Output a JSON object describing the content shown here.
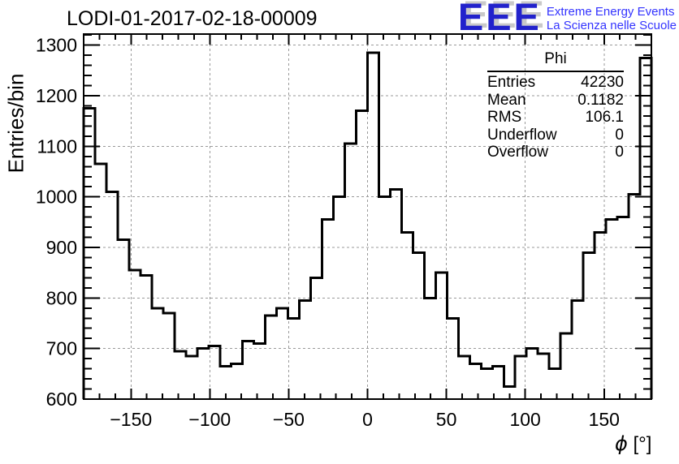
{
  "title": "LODI-01-2017-02-18-00009",
  "logo": {
    "acronym": "EEE",
    "line1": "Extreme Energy Events",
    "line2": "La Scienza nelle Scuole",
    "brand_color": "#2222cc",
    "text_color": "#3333ff",
    "shadow_color": "#c9c9c9"
  },
  "stats": {
    "title": "Phi",
    "rows": [
      {
        "label": "Entries",
        "value": "42230"
      },
      {
        "label": "Mean",
        "value": "0.1182"
      },
      {
        "label": "RMS",
        "value": "106.1"
      },
      {
        "label": "Underflow",
        "value": "0"
      },
      {
        "label": "Overflow",
        "value": "0"
      }
    ]
  },
  "chart_data": {
    "type": "bar",
    "subtype": "step-histogram",
    "title": "LODI-01-2017-02-18-00009",
    "xlabel": "ϕ [°]",
    "xlabel_symbol": "ϕ",
    "xlabel_units": " [°]",
    "ylabel": "Entries/bin",
    "x_range": [
      -180,
      180
    ],
    "y_range": [
      600,
      1322
    ],
    "x_ticks": [
      -150,
      -100,
      -50,
      0,
      50,
      100,
      150
    ],
    "y_ticks": [
      600,
      700,
      800,
      900,
      1000,
      1100,
      1200,
      1300
    ],
    "x_minor_step": 10,
    "y_minor_step": 20,
    "grid": true,
    "legend": "none",
    "line_color": "#000000",
    "n_bins": 50,
    "bin_width_deg": 7.2,
    "values": [
      1175,
      1065,
      1010,
      915,
      855,
      845,
      780,
      770,
      695,
      685,
      700,
      705,
      665,
      670,
      715,
      710,
      765,
      780,
      760,
      795,
      840,
      955,
      1000,
      1105,
      1170,
      1285,
      1000,
      1015,
      930,
      890,
      800,
      850,
      760,
      685,
      670,
      660,
      665,
      625,
      685,
      700,
      690,
      660,
      730,
      795,
      890,
      930,
      955,
      960,
      1005,
      1275
    ]
  }
}
